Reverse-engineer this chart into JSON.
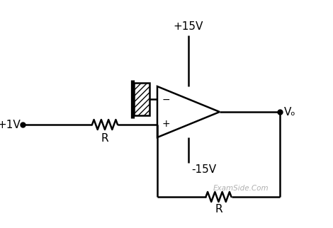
{
  "bg_color": "#ffffff",
  "line_color": "#000000",
  "text_color": "#000000",
  "watermark_color": "#b0b0b0",
  "v1_label": "+1V",
  "vpos_label": "+15V",
  "vneg_label": "-15V",
  "vo_label": "Vₒ",
  "r_label": "R",
  "figsize": [
    4.7,
    3.22
  ],
  "dpi": 100,
  "lw": 1.8
}
